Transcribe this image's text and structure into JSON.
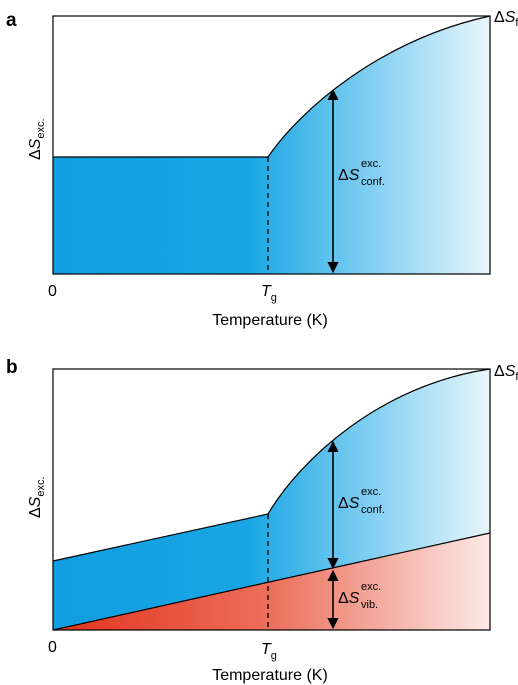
{
  "panels": [
    {
      "letter": "a",
      "ylabel": {
        "delta": "Δ",
        "S": "S",
        "sub": "exc."
      },
      "right_label": {
        "delta": "Δ",
        "S": "S",
        "sub": "f"
      },
      "x_zero": "0",
      "tg": {
        "T": "T",
        "sub": "g"
      },
      "xlabel": "Temperature (K)",
      "annotations": [
        {
          "delta": "Δ",
          "S": "S",
          "sup": "exc.",
          "sub": "conf."
        }
      ]
    },
    {
      "letter": "b",
      "ylabel": {
        "delta": "Δ",
        "S": "S",
        "sub": "exc."
      },
      "right_label": {
        "delta": "Δ",
        "S": "S",
        "sub": "f"
      },
      "x_zero": "0",
      "tg": {
        "T": "T",
        "sub": "g"
      },
      "xlabel": "Temperature (K)",
      "annotations": [
        {
          "delta": "Δ",
          "S": "S",
          "sup": "exc.",
          "sub": "conf."
        },
        {
          "delta": "Δ",
          "S": "S",
          "sup": "exc.",
          "sub": "vib."
        }
      ]
    }
  ],
  "colors": {
    "configurational_fill_dark": "#1aa3e0",
    "configurational_fill_light": "#e6f5fc",
    "vibrational_fill_dark": "#e23a24",
    "vibrational_fill_light": "#fbe4e0",
    "line": "#000000"
  }
}
